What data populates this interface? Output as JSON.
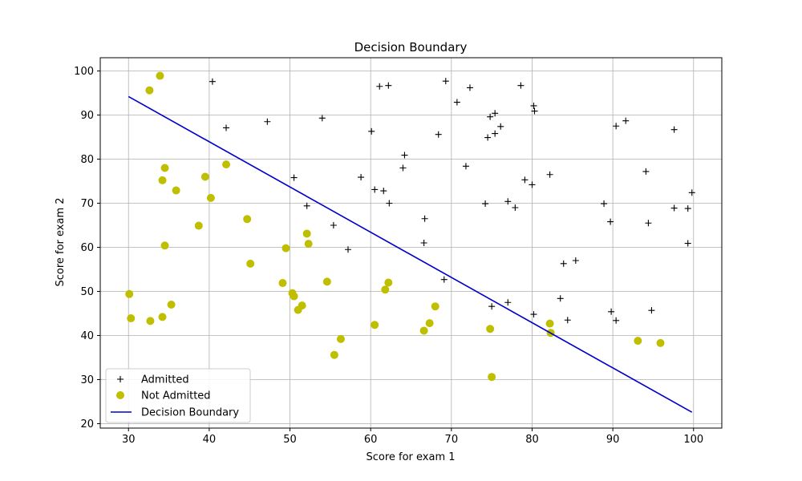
{
  "chart_data": {
    "type": "scatter",
    "title": "Decision Boundary",
    "xlabel": "Score for exam 1",
    "ylabel": "Score for exam 2",
    "xlim": [
      26.5,
      103.5
    ],
    "ylim": [
      19,
      103
    ],
    "xticks": [
      30,
      40,
      50,
      60,
      70,
      80,
      90,
      100
    ],
    "yticks": [
      20,
      30,
      40,
      50,
      60,
      70,
      80,
      90,
      100
    ],
    "grid": true,
    "legend_position": "lower-left",
    "series": [
      {
        "name": "Admitted",
        "marker": "+",
        "color": "#000000",
        "points": [
          [
            40.4,
            97.6
          ],
          [
            61.1,
            96.5
          ],
          [
            62.2,
            96.7
          ],
          [
            69.3,
            97.7
          ],
          [
            72.3,
            96.2
          ],
          [
            78.6,
            96.7
          ],
          [
            42.1,
            87.1
          ],
          [
            47.2,
            88.5
          ],
          [
            54.0,
            89.3
          ],
          [
            60.1,
            86.3
          ],
          [
            70.7,
            92.9
          ],
          [
            74.8,
            89.6
          ],
          [
            75.4,
            90.4
          ],
          [
            76.1,
            87.4
          ],
          [
            74.5,
            84.9
          ],
          [
            75.4,
            85.8
          ],
          [
            80.2,
            92.1
          ],
          [
            80.3,
            90.9
          ],
          [
            90.4,
            87.5
          ],
          [
            91.6,
            88.7
          ],
          [
            97.6,
            86.7
          ],
          [
            64.2,
            80.9
          ],
          [
            68.4,
            85.6
          ],
          [
            64.0,
            78.0
          ],
          [
            71.8,
            78.4
          ],
          [
            58.8,
            75.9
          ],
          [
            50.5,
            75.8
          ],
          [
            79.1,
            75.3
          ],
          [
            82.2,
            76.5
          ],
          [
            94.1,
            77.2
          ],
          [
            60.5,
            73.1
          ],
          [
            61.6,
            72.8
          ],
          [
            52.1,
            69.4
          ],
          [
            62.3,
            70.0
          ],
          [
            74.2,
            69.9
          ],
          [
            77.0,
            70.4
          ],
          [
            77.9,
            69.0
          ],
          [
            80.0,
            74.2
          ],
          [
            88.9,
            69.9
          ],
          [
            99.8,
            72.4
          ],
          [
            97.6,
            68.9
          ],
          [
            99.3,
            68.8
          ],
          [
            55.4,
            65.0
          ],
          [
            66.7,
            66.5
          ],
          [
            89.7,
            65.8
          ],
          [
            94.4,
            65.5
          ],
          [
            57.2,
            59.5
          ],
          [
            66.6,
            61.0
          ],
          [
            99.3,
            60.9
          ],
          [
            83.9,
            56.3
          ],
          [
            85.4,
            57.0
          ],
          [
            69.1,
            52.7
          ],
          [
            83.5,
            48.4
          ],
          [
            75.0,
            46.6
          ],
          [
            77.0,
            47.5
          ],
          [
            89.8,
            45.4
          ],
          [
            94.8,
            45.7
          ],
          [
            80.2,
            44.8
          ],
          [
            84.4,
            43.5
          ],
          [
            90.4,
            43.4
          ]
        ]
      },
      {
        "name": "Not Admitted",
        "marker": "o",
        "color": "#bfbf00",
        "points": [
          [
            33.9,
            98.9
          ],
          [
            32.6,
            95.6
          ],
          [
            34.5,
            78.0
          ],
          [
            34.2,
            75.2
          ],
          [
            39.5,
            76.0
          ],
          [
            42.1,
            78.8
          ],
          [
            35.9,
            72.9
          ],
          [
            40.2,
            71.2
          ],
          [
            44.7,
            66.4
          ],
          [
            38.7,
            64.9
          ],
          [
            52.1,
            63.1
          ],
          [
            52.3,
            60.8
          ],
          [
            34.5,
            60.4
          ],
          [
            49.5,
            59.8
          ],
          [
            45.1,
            56.3
          ],
          [
            49.1,
            51.9
          ],
          [
            54.6,
            52.2
          ],
          [
            62.2,
            52.0
          ],
          [
            61.8,
            50.4
          ],
          [
            30.1,
            49.4
          ],
          [
            50.3,
            49.6
          ],
          [
            50.5,
            48.9
          ],
          [
            35.3,
            47.0
          ],
          [
            51.5,
            46.8
          ],
          [
            51.0,
            45.8
          ],
          [
            68.0,
            46.6
          ],
          [
            30.3,
            43.9
          ],
          [
            32.7,
            43.3
          ],
          [
            34.2,
            44.2
          ],
          [
            67.3,
            42.8
          ],
          [
            60.5,
            42.4
          ],
          [
            82.2,
            42.7
          ],
          [
            74.8,
            41.5
          ],
          [
            66.6,
            41.1
          ],
          [
            82.3,
            40.6
          ],
          [
            56.3,
            39.2
          ],
          [
            93.1,
            38.8
          ],
          [
            95.9,
            38.3
          ],
          [
            55.5,
            35.6
          ],
          [
            75.0,
            30.6
          ]
        ]
      },
      {
        "name": "Decision Boundary",
        "type": "line",
        "color": "#0000cc",
        "points": [
          [
            30.0,
            94.2
          ],
          [
            99.8,
            22.6
          ]
        ]
      }
    ]
  }
}
